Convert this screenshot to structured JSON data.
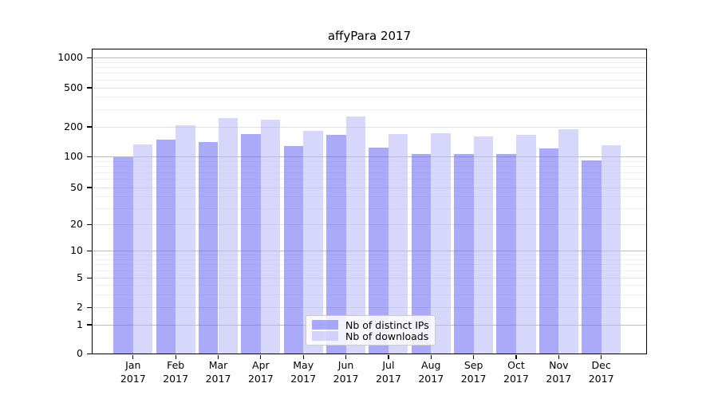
{
  "chart_data": {
    "type": "bar",
    "title": "affyPara 2017",
    "categories": [
      "Jan 2017",
      "Feb 2017",
      "Mar 2017",
      "Apr 2017",
      "May 2017",
      "Jun 2017",
      "Jul 2017",
      "Aug 2017",
      "Sep 2017",
      "Oct 2017",
      "Nov 2017",
      "Dec 2017"
    ],
    "series": [
      {
        "name": "Nb of distinct IPs",
        "color": "#6c6cf5",
        "alpha": 0.58,
        "values": [
          99,
          148,
          141,
          170,
          128,
          165,
          124,
          106,
          107,
          106,
          121,
          92
        ]
      },
      {
        "name": "Nb of downloads",
        "color": "#b7b7f7",
        "alpha": 0.55,
        "values": [
          133,
          208,
          244,
          238,
          181,
          255,
          170,
          172,
          161,
          165,
          190,
          131
        ]
      }
    ],
    "y_ticks": [
      0,
      1,
      2,
      5,
      10,
      20,
      50,
      100,
      200,
      500,
      1000
    ],
    "ylim": [
      0,
      1000
    ],
    "y_scale": "log-like with zero baseline",
    "grid": true,
    "legend_position": "inside-bottom-center",
    "grid_colors": {
      "major_power10": "#bdbdbd",
      "labeled": "#e2e2e2",
      "minor": "#f0f0f0"
    }
  }
}
